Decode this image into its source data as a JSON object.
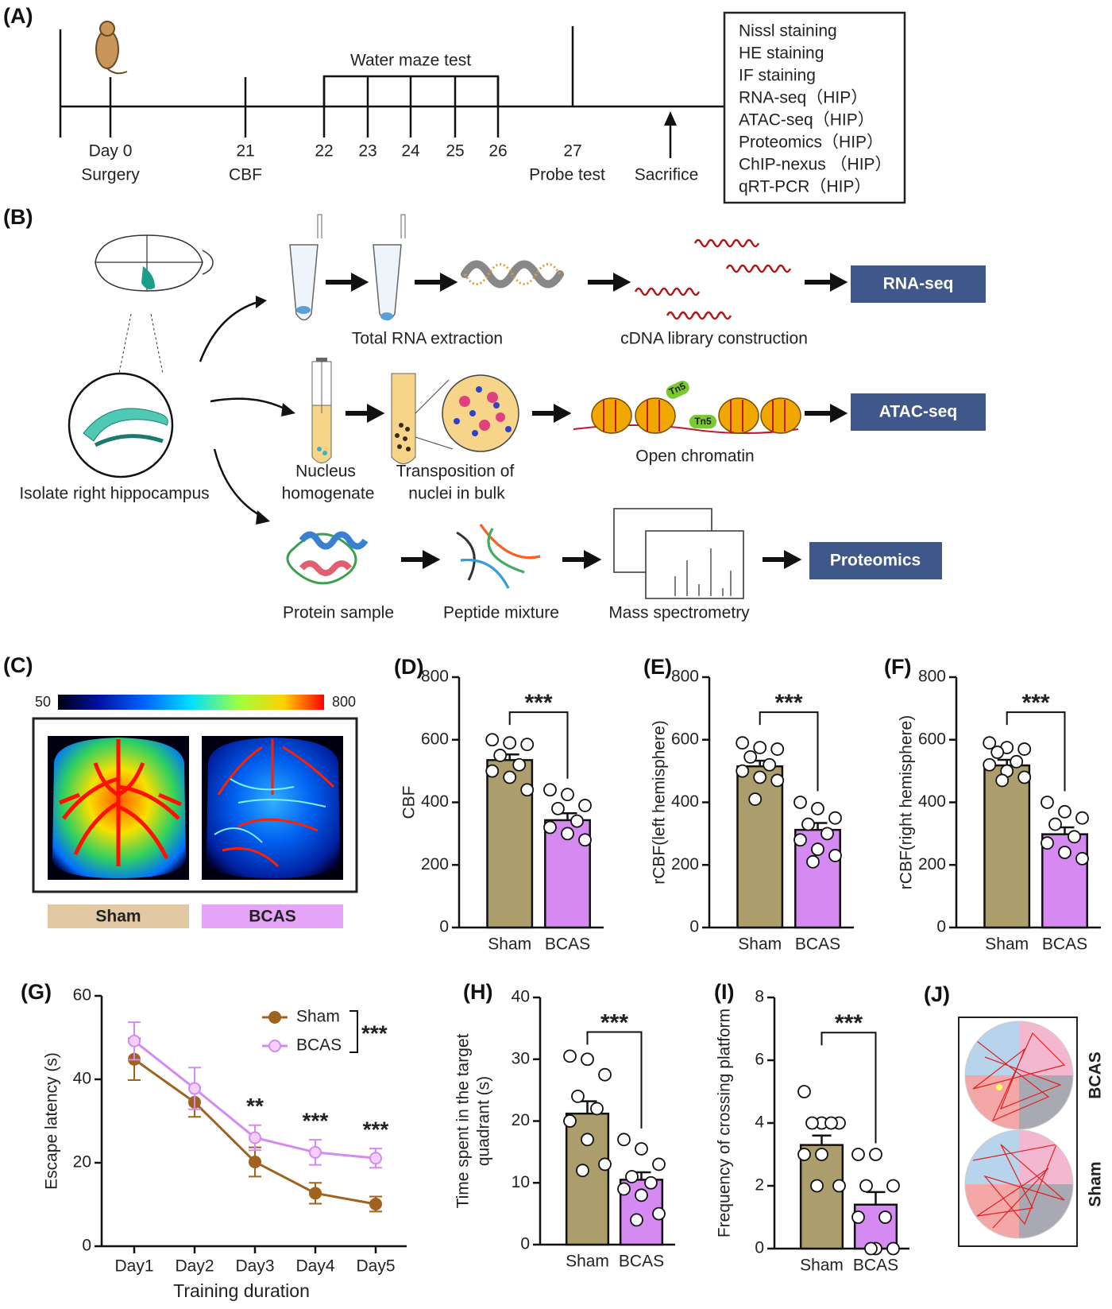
{
  "timeline": {
    "label": "(A)",
    "bracket_label": "Water maze test",
    "days": [
      "Day 0",
      "21",
      "22",
      "23",
      "24",
      "25",
      "26",
      "27"
    ],
    "events": [
      "Surgery",
      "CBF",
      "Probe test",
      "Sacrifice"
    ],
    "assays": [
      "Nissl staining",
      "HE staining",
      "IF staining",
      "RNA-seq（HIP）",
      "ATAC-seq（HIP）",
      "Proteomics（HIP）",
      "ChIP-nexus （HIP）",
      "qRT-PCR（HIP）"
    ]
  },
  "workflow": {
    "label": "(B)",
    "source": "Isolate right hippocampus",
    "rna": {
      "steps": [
        "Total RNA extraction",
        "cDNA library construction"
      ],
      "output": "RNA-seq"
    },
    "atac": {
      "steps": [
        [
          "Nucleus",
          "homogenate"
        ],
        [
          "Transposition of",
          "nuclei in bulk"
        ],
        "Open chromatin"
      ],
      "tag": "Tn5",
      "output": "ATAC-seq"
    },
    "proteomics": {
      "steps": [
        "Protein sample",
        "Peptide mixture",
        "Mass spectrometry"
      ],
      "output": "Proteomics"
    }
  },
  "imaging": {
    "label": "(C)",
    "colorbar_min": 50,
    "colorbar_max": 800,
    "groups": [
      "Sham",
      "BCAS"
    ]
  },
  "trajectories": {
    "label": "(J)",
    "groups": [
      "BCAS",
      "Sham"
    ]
  },
  "chart_data": [
    {
      "type": "bar",
      "label": "(D)",
      "ylabel": [
        "CBF"
      ],
      "categories": [
        "Sham",
        "BCAS"
      ],
      "values": [
        535,
        343
      ],
      "errors": [
        18,
        22
      ],
      "points": [
        [
          600,
          590,
          585,
          550,
          520,
          500,
          480,
          440
        ],
        [
          440,
          425,
          390,
          380,
          340,
          320,
          300,
          280
        ]
      ],
      "colors": [
        "#ab9e6c",
        "#d58af2"
      ],
      "ylim": [
        0,
        800
      ],
      "yticks": [
        0,
        200,
        400,
        600,
        800
      ],
      "significance": "***"
    },
    {
      "type": "bar",
      "label": "(E)",
      "ylabel": [
        "rCBF(left hemisphere)"
      ],
      "categories": [
        "Sham",
        "BCAS"
      ],
      "values": [
        515,
        312
      ],
      "errors": [
        18,
        22
      ],
      "points": [
        [
          590,
          575,
          570,
          545,
          520,
          500,
          480,
          470,
          410
        ],
        [
          400,
          380,
          350,
          330,
          300,
          280,
          250,
          230,
          210
        ]
      ],
      "colors": [
        "#ab9e6c",
        "#d58af2"
      ],
      "ylim": [
        0,
        800
      ],
      "yticks": [
        0,
        200,
        400,
        600,
        800
      ],
      "significance": "***"
    },
    {
      "type": "bar",
      "label": "(F)",
      "ylabel": [
        "rCBF(right hemisphere)"
      ],
      "categories": [
        "Sham",
        "BCAS"
      ],
      "values": [
        518,
        298
      ],
      "errors": [
        18,
        22
      ],
      "points": [
        [
          590,
          575,
          570,
          560,
          530,
          520,
          500,
          480,
          470
        ],
        [
          400,
          370,
          350,
          330,
          290,
          270,
          240,
          220
        ]
      ],
      "colors": [
        "#ab9e6c",
        "#d58af2"
      ],
      "ylim": [
        0,
        800
      ],
      "yticks": [
        0,
        200,
        400,
        600,
        800
      ],
      "significance": "***"
    },
    {
      "type": "line",
      "label": "(G)",
      "ylabel": [
        "Escape latency (s)"
      ],
      "xlabel": "Training duration",
      "categories": [
        "Day1",
        "Day2",
        "Day3",
        "Day4",
        "Day5"
      ],
      "series": [
        {
          "name": "Sham",
          "color": "#a0621f",
          "values": [
            44.8,
            34.5,
            20.2,
            12.7,
            10.1
          ],
          "errors": [
            5,
            3.5,
            3.5,
            2.5,
            1.8
          ]
        },
        {
          "name": "BCAS",
          "color": "#d58af2",
          "values": [
            49.2,
            37.8,
            26,
            22.5,
            21.1
          ],
          "errors": [
            4.5,
            5,
            3,
            3,
            2.3
          ]
        }
      ],
      "ylim": [
        0,
        60
      ],
      "yticks": [
        0,
        20,
        40,
        60
      ],
      "significance": [
        null,
        null,
        "**",
        "***",
        "***"
      ],
      "group_significance": "***"
    },
    {
      "type": "bar",
      "label": "(H)",
      "ylabel": [
        "Time spent in the target",
        "quadrant (s)"
      ],
      "categories": [
        "Sham",
        "BCAS"
      ],
      "values": [
        21.2,
        10.5
      ],
      "errors": [
        2,
        1.2
      ],
      "points": [
        [
          30.5,
          30,
          27.5,
          24,
          22,
          20,
          17,
          13,
          12
        ],
        [
          17,
          15.5,
          13,
          11,
          10,
          9,
          8,
          5,
          4
        ]
      ],
      "colors": [
        "#ab9e6c",
        "#d58af2"
      ],
      "ylim": [
        0,
        40
      ],
      "yticks": [
        0,
        10,
        20,
        30,
        40
      ],
      "significance": "***"
    },
    {
      "type": "bar",
      "label": "(I)",
      "ylabel": [
        "Frequency of crossing platform"
      ],
      "categories": [
        "Sham",
        "BCAS"
      ],
      "values": [
        3.3,
        1.4
      ],
      "errors": [
        0.3,
        0.4
      ],
      "points": [
        [
          5,
          4,
          4,
          4,
          4,
          3,
          3,
          2,
          2
        ],
        [
          3,
          3,
          2,
          2,
          1,
          1,
          0,
          0,
          0
        ]
      ],
      "colors": [
        "#ab9e6c",
        "#d58af2"
      ],
      "ylim": [
        0,
        8
      ],
      "yticks": [
        0,
        2,
        4,
        6,
        8
      ],
      "significance": "***"
    }
  ]
}
